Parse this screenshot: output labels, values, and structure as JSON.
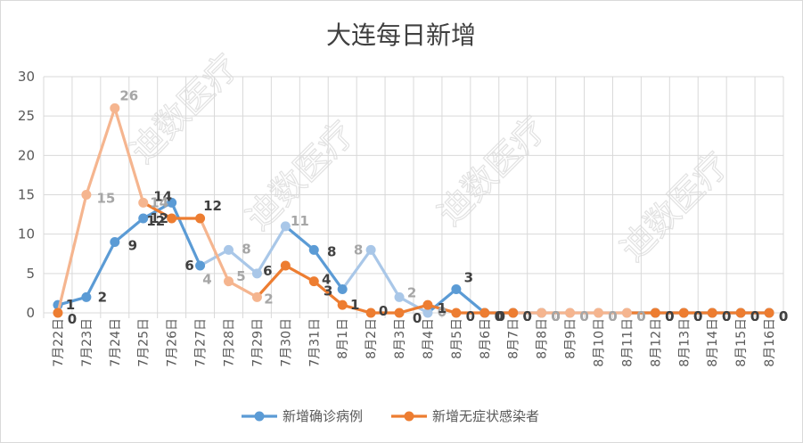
{
  "chart_data": {
    "type": "line",
    "title": "大连每日新增",
    "categories": [
      "7月22日",
      "7月23日",
      "7月24日",
      "7月25日",
      "7月26日",
      "7月27日",
      "7月28日",
      "7月29日",
      "7月30日",
      "7月31日",
      "8月1日",
      "8月2日",
      "8月3日",
      "8月4日",
      "8月5日",
      "8月6日",
      "8月7日",
      "8月8日",
      "8月9日",
      "8月10日",
      "8月11日",
      "8月12日",
      "8月13日",
      "8月14日",
      "8月15日",
      "8月16日"
    ],
    "series": [
      {
        "name": "新增确诊病例",
        "color": "#5b9bd5",
        "values": [
          1,
          2,
          9,
          12,
          14,
          6,
          8,
          5,
          11,
          8,
          3,
          8,
          2,
          0,
          3,
          0,
          0,
          0,
          0,
          0,
          0,
          0,
          0,
          0,
          0,
          0
        ]
      },
      {
        "name": "新增无症状感染者",
        "color": "#ed7d31",
        "values": [
          0,
          15,
          26,
          14,
          12,
          12,
          4,
          2,
          6,
          4,
          1,
          0,
          0,
          1,
          0,
          0,
          0,
          0,
          0,
          0,
          0,
          0,
          0,
          0,
          0,
          0
        ]
      }
    ],
    "y_ticks": [
      "0",
      "5",
      "10",
      "15",
      "20",
      "25",
      "30"
    ],
    "ylim": [
      0,
      30
    ],
    "xlabel": "",
    "ylabel": "",
    "grid": true,
    "legend_position": "bottom",
    "highlight_colors": {
      "blue_light": "#a9c7e8",
      "orange_light": "#f5b58f"
    },
    "label_colors": {
      "dark": "#404040",
      "light": "#a6a6a6"
    },
    "watermark": "迪数医疗"
  }
}
